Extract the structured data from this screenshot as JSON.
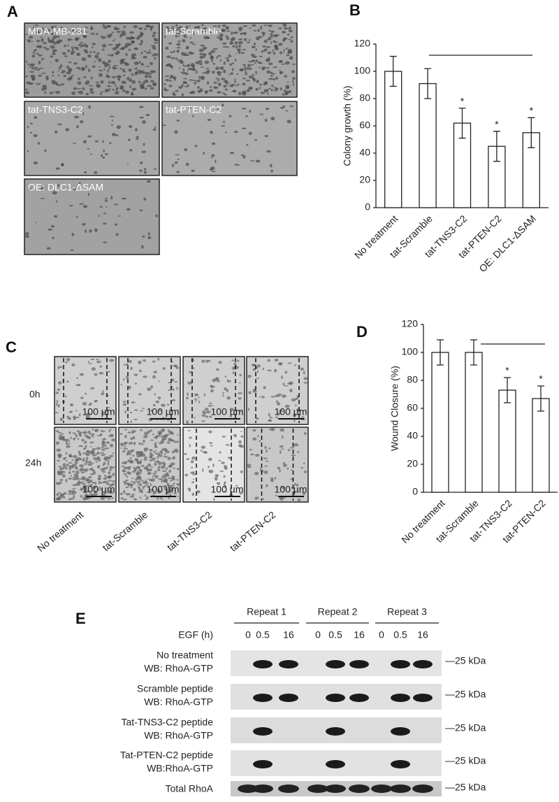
{
  "panel_labels": [
    "A",
    "B",
    "C",
    "D",
    "E"
  ],
  "panel_a": {
    "captions": [
      "MDA-MB-231",
      "tat-Scramble",
      "tat-TNS3-C2",
      "tat-PTEN-C2",
      "OE: DLC1-ΔSAM"
    ]
  },
  "chart_data": [
    {
      "type": "bar",
      "ylabel": "Colony growth (%)",
      "categories": [
        "No treatment",
        "tat-Scramble",
        "tat-TNS3-C2",
        "tat-PTEN-C2",
        "OE: DLC1-ΔSAM"
      ],
      "values": [
        100,
        91,
        62,
        45,
        55
      ],
      "errors": [
        11,
        11,
        11,
        11,
        11
      ],
      "significance": [
        null,
        null,
        "*",
        "*",
        "*"
      ],
      "color": "#ffffff",
      "ylim": [
        0,
        120
      ],
      "yticks": [
        0,
        20,
        40,
        60,
        80,
        100,
        120
      ]
    },
    {
      "type": "bar",
      "ylabel": "Wound Closure (%)",
      "categories": [
        "No treatment",
        "tat-Scramble",
        "tat-TNS3-C2",
        "tat-PTEN-C2"
      ],
      "values": [
        100,
        100,
        73,
        67
      ],
      "errors": [
        9,
        9,
        9,
        9
      ],
      "significance": [
        null,
        null,
        "*",
        "*"
      ],
      "color": "#ffffff",
      "ylim": [
        0,
        120
      ],
      "yticks": [
        0,
        20,
        40,
        60,
        80,
        100,
        120
      ]
    }
  ],
  "panel_c": {
    "timepoints": [
      "0h",
      "24h"
    ],
    "scale_bar": "100 µm",
    "conditions": [
      "No treatment",
      "tat-Scramble",
      "tat-TNS3-C2",
      "tat-PTEN-C2"
    ]
  },
  "panel_e": {
    "repeats": [
      "Repeat 1",
      "Repeat 2",
      "Repeat 3"
    ],
    "egf_label": "EGF (h)",
    "time_points": [
      "0",
      "0.5",
      "16"
    ],
    "rows": [
      {
        "label": [
          "No treatment",
          "WB: RhoA-GTP"
        ],
        "marker": "—25 kDa"
      },
      {
        "label": [
          "Scramble peptide",
          "WB: RhoA-GTP"
        ],
        "marker": "—25 kDa"
      },
      {
        "label": [
          "Tat-TNS3-C2 peptide",
          "WB: RhoA-GTP"
        ],
        "marker": "—25 kDa"
      },
      {
        "label": [
          "Tat-PTEN-C2 peptide",
          "WB:RhoA-GTP"
        ],
        "marker": "—25 kDa"
      }
    ],
    "total": {
      "label": "Total RhoA",
      "marker": "—25 kDa"
    }
  }
}
